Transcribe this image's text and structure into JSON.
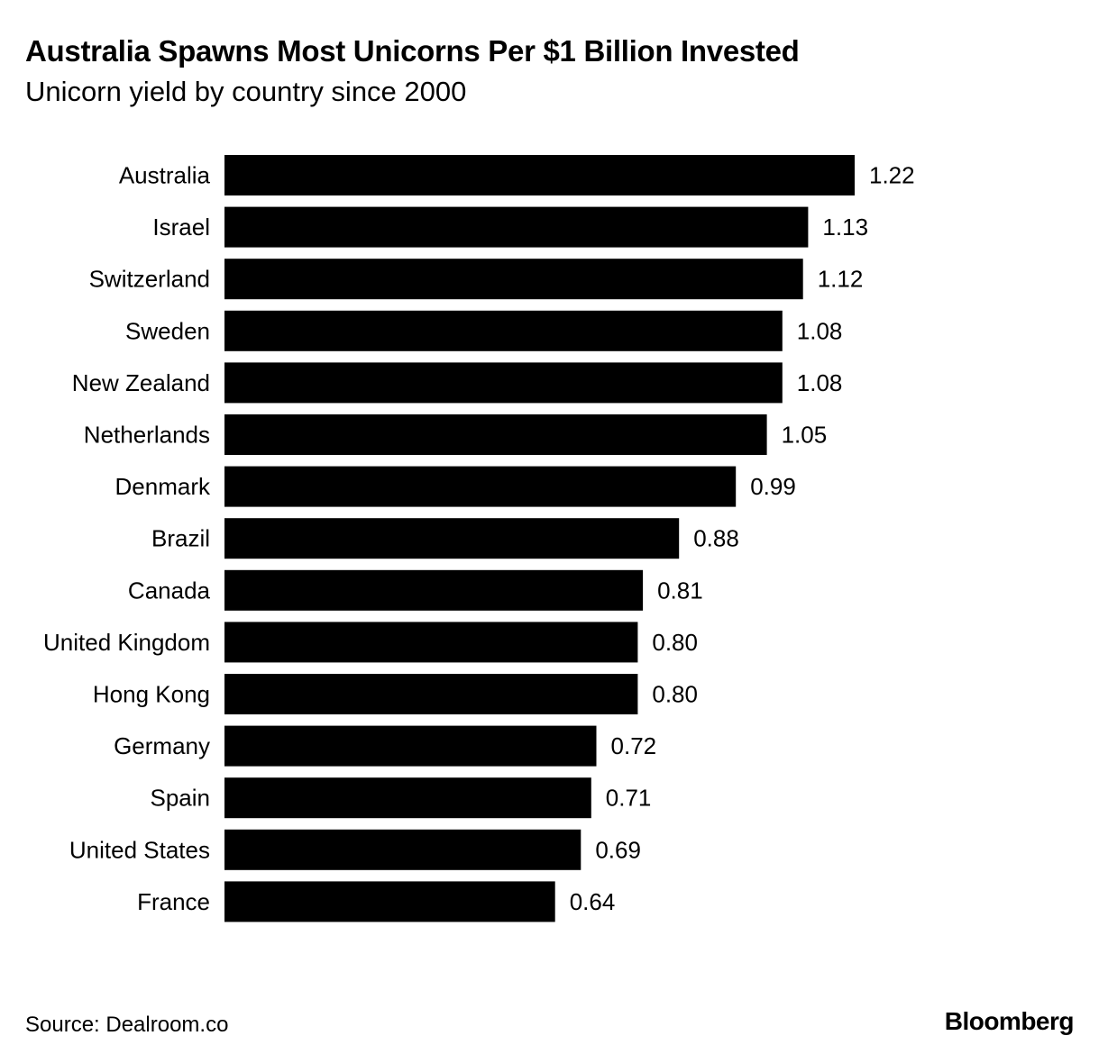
{
  "chart_data": {
    "type": "bar",
    "orientation": "horizontal",
    "title": "Australia Spawns Most Unicorns Per $1 Billion Invested",
    "subtitle": "Unicorn yield by country since 2000",
    "categories": [
      "Australia",
      "Israel",
      "Switzerland",
      "Sweden",
      "New Zealand",
      "Netherlands",
      "Denmark",
      "Brazil",
      "Canada",
      "United Kingdom",
      "Hong Kong",
      "Germany",
      "Spain",
      "United States",
      "France"
    ],
    "values": [
      1.22,
      1.13,
      1.12,
      1.08,
      1.08,
      1.05,
      0.99,
      0.88,
      0.81,
      0.8,
      0.8,
      0.72,
      0.71,
      0.69,
      0.64
    ],
    "value_labels": [
      "1.22",
      "1.13",
      "1.12",
      "1.08",
      "1.08",
      "1.05",
      "0.99",
      "0.88",
      "0.81",
      "0.80",
      "0.80",
      "0.72",
      "0.71",
      "0.69",
      "0.64"
    ],
    "bar_color": "#000000",
    "xlim": [
      0,
      1.22
    ],
    "grid": false,
    "legend": "none"
  },
  "footer": {
    "source": "Source: Dealroom.co",
    "brand": "Bloomberg"
  }
}
